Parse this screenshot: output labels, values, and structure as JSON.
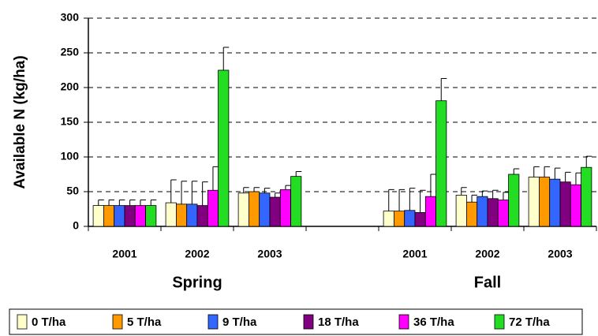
{
  "chart_data": {
    "type": "bar",
    "y_label": "Available N (kg/ha)",
    "categories": [
      "2001",
      "2002",
      "2003",
      null,
      "2001",
      "2002",
      "2003"
    ],
    "group_labels": [
      "Spring",
      "Fall"
    ],
    "ylim": [
      0,
      300
    ],
    "yticks": [
      0,
      50,
      100,
      150,
      200,
      250,
      300
    ],
    "grid": true,
    "legend": "bottom",
    "series": [
      {
        "name": "0 T/ha",
        "color": "#ffffcc",
        "values": [
          30,
          34,
          48,
          null,
          22,
          45,
          71
        ],
        "errors": [
          8,
          33,
          8,
          null,
          31,
          11,
          15
        ]
      },
      {
        "name": "5 T/ha",
        "color": "#ff9900",
        "values": [
          30,
          32,
          50,
          null,
          22,
          35,
          71
        ],
        "errors": [
          8,
          33,
          6,
          null,
          31,
          10,
          15
        ]
      },
      {
        "name": "9 T/ha",
        "color": "#3366ff",
        "values": [
          30,
          32,
          48,
          null,
          23,
          43,
          68
        ],
        "errors": [
          8,
          33,
          7,
          null,
          32,
          8,
          16
        ]
      },
      {
        "name": "18 T/ha",
        "color": "#800080",
        "values": [
          30,
          30,
          42,
          null,
          20,
          40,
          64
        ],
        "errors": [
          8,
          34,
          6,
          null,
          32,
          12,
          14
        ]
      },
      {
        "name": "36 T/ha",
        "color": "#ff00ff",
        "values": [
          30,
          52,
          53,
          null,
          43,
          38,
          60
        ],
        "errors": [
          8,
          34,
          6,
          null,
          32,
          11,
          17
        ]
      },
      {
        "name": "72 T/ha",
        "color": "#22dd22",
        "values": [
          30,
          225,
          72,
          null,
          181,
          75,
          85
        ],
        "errors": [
          8,
          33,
          7,
          null,
          32,
          8,
          16
        ]
      }
    ]
  }
}
